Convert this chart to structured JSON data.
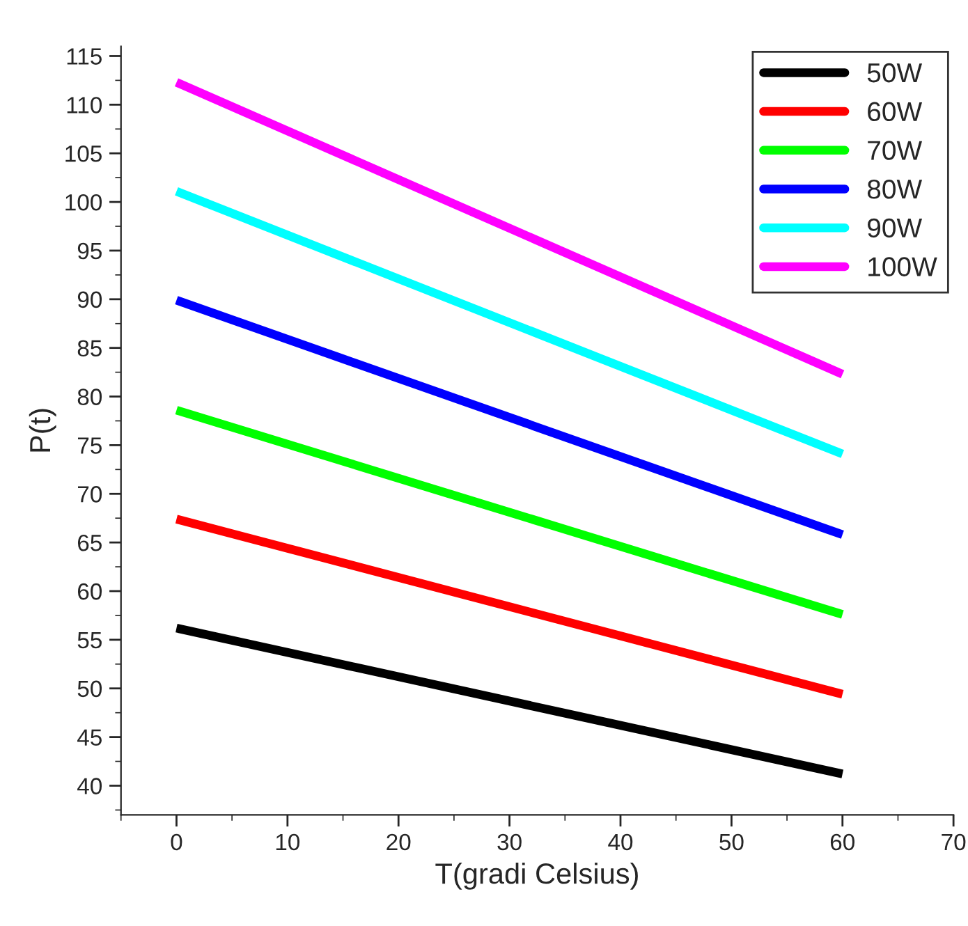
{
  "chart_data": {
    "type": "line",
    "xlabel": "T(gradi Celsius)",
    "ylabel": "P(t)",
    "x": [
      0,
      60
    ],
    "series": [
      {
        "name": "50W",
        "color": "#000000",
        "values": [
          56.2,
          41.2
        ]
      },
      {
        "name": "60W",
        "color": "#ff0000",
        "values": [
          67.4,
          49.4
        ]
      },
      {
        "name": "70W",
        "color": "#00ff00",
        "values": [
          78.6,
          57.6
        ]
      },
      {
        "name": "80W",
        "color": "#0000ff",
        "values": [
          89.9,
          65.8
        ]
      },
      {
        "name": "90W",
        "color": "#00ffff",
        "values": [
          101.1,
          74.1
        ]
      },
      {
        "name": "100W",
        "color": "#ff00ff",
        "values": [
          112.3,
          82.3
        ]
      }
    ],
    "xlim": [
      -5,
      70
    ],
    "xticks": [
      0,
      10,
      20,
      30,
      40,
      50,
      60,
      70
    ],
    "ylim": [
      37,
      116
    ],
    "yticks": [
      40,
      45,
      50,
      55,
      60,
      65,
      70,
      75,
      80,
      85,
      90,
      95,
      100,
      105,
      110,
      115
    ],
    "grid": false,
    "legend": "top right",
    "marker": "none",
    "line_style": "solid"
  }
}
